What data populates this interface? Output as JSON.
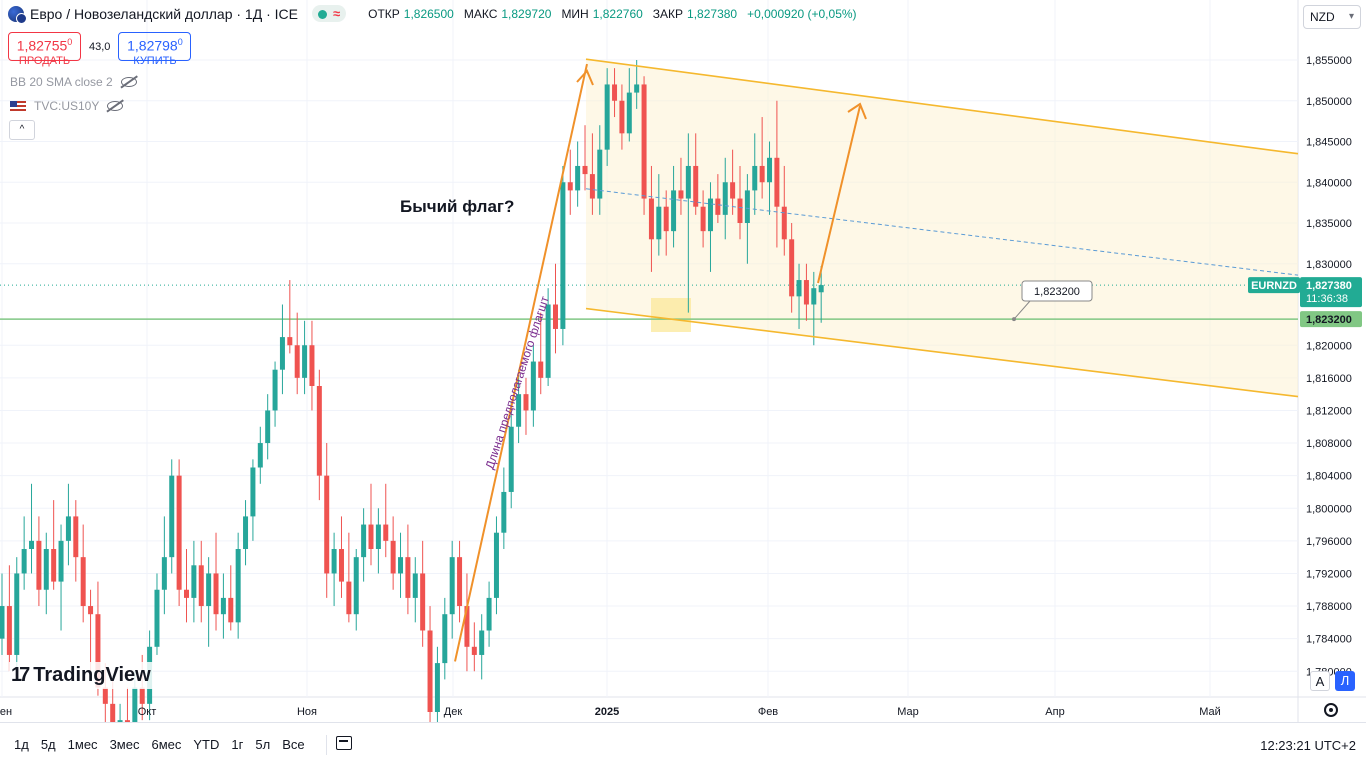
{
  "legend": {
    "title": "Евро / Новозеландский доллар · 1Д · ICE",
    "wave_symbol": "≈",
    "ohlc": [
      {
        "label": "ОТКР",
        "value": "1,826500"
      },
      {
        "label": "МАКС",
        "value": "1,829720"
      },
      {
        "label": "МИН",
        "value": "1,822760"
      },
      {
        "label": "ЗАКР",
        "value": "1,827380"
      },
      {
        "label": "",
        "value": "+0,000920 (+0,05%)"
      }
    ]
  },
  "trade": {
    "sell_price": "1,82755",
    "sell_price_sup": "0",
    "sell_label": "ПРОДАТЬ",
    "spread": "43,0",
    "buy_price": "1,82798",
    "buy_price_sup": "0",
    "buy_label": "КУПИТЬ"
  },
  "indicators": [
    {
      "label": "BB 20 SMA close 2"
    },
    {
      "label": "TVC:US10Y"
    }
  ],
  "collapse_icon": "^",
  "currency_selector": "NZD",
  "logo": {
    "mark": "17",
    "text": "TradingView"
  },
  "axis_buttons": {
    "auto": "A",
    "log": "Л"
  },
  "bottom_toolbar": {
    "ranges": [
      "1д",
      "5д",
      "1мес",
      "3мес",
      "6мес",
      "YTD",
      "1г",
      "5л",
      "Все"
    ],
    "time": "12:23:21 UTC+2"
  },
  "chart_data": {
    "type": "candlestick",
    "symbol": "EURNZD",
    "x_tick_labels": [
      "Сен",
      "Окт",
      "Ноя",
      "Дек",
      "2025",
      "Фев",
      "Мар",
      "Апр",
      "Май"
    ],
    "y_tick_labels": [
      "1,855000",
      "1,850000",
      "1,845000",
      "1,840000",
      "1,835000",
      "1,830000",
      "1,820000",
      "1,816000",
      "1,812000",
      "1,808000",
      "1,804000",
      "1,800000",
      "1,796000",
      "1,792000",
      "1,788000",
      "1,784000",
      "1,780000"
    ],
    "price_marks": [
      {
        "label": "EURNZD",
        "value": "1,827380",
        "countdown": "11:36:38",
        "color": "#22ab94"
      },
      {
        "label": "",
        "value": "1,823200",
        "color": "#81c784"
      }
    ],
    "horizontal_level": 1.8232,
    "annotations": [
      {
        "text": "Бычий флаг?"
      },
      {
        "text": "1,823200"
      },
      {
        "text": "Длина предполагаемого флагшт"
      }
    ],
    "candles": [
      {
        "o": 1.784,
        "h": 1.792,
        "l": 1.782,
        "c": 1.788
      },
      {
        "o": 1.788,
        "h": 1.793,
        "l": 1.78,
        "c": 1.782
      },
      {
        "o": 1.782,
        "h": 1.794,
        "l": 1.78,
        "c": 1.792
      },
      {
        "o": 1.792,
        "h": 1.799,
        "l": 1.79,
        "c": 1.795
      },
      {
        "o": 1.795,
        "h": 1.803,
        "l": 1.792,
        "c": 1.796
      },
      {
        "o": 1.796,
        "h": 1.799,
        "l": 1.788,
        "c": 1.79
      },
      {
        "o": 1.79,
        "h": 1.797,
        "l": 1.787,
        "c": 1.795
      },
      {
        "o": 1.795,
        "h": 1.801,
        "l": 1.79,
        "c": 1.791
      },
      {
        "o": 1.791,
        "h": 1.798,
        "l": 1.785,
        "c": 1.796
      },
      {
        "o": 1.796,
        "h": 1.803,
        "l": 1.793,
        "c": 1.799
      },
      {
        "o": 1.799,
        "h": 1.801,
        "l": 1.791,
        "c": 1.794
      },
      {
        "o": 1.794,
        "h": 1.798,
        "l": 1.786,
        "c": 1.788
      },
      {
        "o": 1.788,
        "h": 1.79,
        "l": 1.78,
        "c": 1.787
      },
      {
        "o": 1.787,
        "h": 1.791,
        "l": 1.777,
        "c": 1.778
      },
      {
        "o": 1.778,
        "h": 1.781,
        "l": 1.773,
        "c": 1.776
      },
      {
        "o": 1.776,
        "h": 1.779,
        "l": 1.77,
        "c": 1.772
      },
      {
        "o": 1.772,
        "h": 1.776,
        "l": 1.769,
        "c": 1.774
      },
      {
        "o": 1.774,
        "h": 1.778,
        "l": 1.77,
        "c": 1.772
      },
      {
        "o": 1.772,
        "h": 1.78,
        "l": 1.77,
        "c": 1.778
      },
      {
        "o": 1.778,
        "h": 1.782,
        "l": 1.774,
        "c": 1.776
      },
      {
        "o": 1.776,
        "h": 1.785,
        "l": 1.774,
        "c": 1.783
      },
      {
        "o": 1.783,
        "h": 1.792,
        "l": 1.782,
        "c": 1.79
      },
      {
        "o": 1.79,
        "h": 1.799,
        "l": 1.787,
        "c": 1.794
      },
      {
        "o": 1.794,
        "h": 1.806,
        "l": 1.792,
        "c": 1.804
      },
      {
        "o": 1.804,
        "h": 1.806,
        "l": 1.788,
        "c": 1.79
      },
      {
        "o": 1.79,
        "h": 1.795,
        "l": 1.786,
        "c": 1.789
      },
      {
        "o": 1.789,
        "h": 1.796,
        "l": 1.786,
        "c": 1.793
      },
      {
        "o": 1.793,
        "h": 1.796,
        "l": 1.786,
        "c": 1.788
      },
      {
        "o": 1.788,
        "h": 1.794,
        "l": 1.783,
        "c": 1.792
      },
      {
        "o": 1.792,
        "h": 1.797,
        "l": 1.785,
        "c": 1.787
      },
      {
        "o": 1.787,
        "h": 1.792,
        "l": 1.784,
        "c": 1.789
      },
      {
        "o": 1.789,
        "h": 1.793,
        "l": 1.785,
        "c": 1.786
      },
      {
        "o": 1.786,
        "h": 1.797,
        "l": 1.784,
        "c": 1.795
      },
      {
        "o": 1.795,
        "h": 1.801,
        "l": 1.793,
        "c": 1.799
      },
      {
        "o": 1.799,
        "h": 1.806,
        "l": 1.796,
        "c": 1.805
      },
      {
        "o": 1.805,
        "h": 1.81,
        "l": 1.803,
        "c": 1.808
      },
      {
        "o": 1.808,
        "h": 1.814,
        "l": 1.806,
        "c": 1.812
      },
      {
        "o": 1.812,
        "h": 1.818,
        "l": 1.81,
        "c": 1.817
      },
      {
        "o": 1.817,
        "h": 1.825,
        "l": 1.814,
        "c": 1.821
      },
      {
        "o": 1.821,
        "h": 1.828,
        "l": 1.819,
        "c": 1.82
      },
      {
        "o": 1.82,
        "h": 1.824,
        "l": 1.814,
        "c": 1.816
      },
      {
        "o": 1.816,
        "h": 1.823,
        "l": 1.814,
        "c": 1.82
      },
      {
        "o": 1.82,
        "h": 1.823,
        "l": 1.812,
        "c": 1.815
      },
      {
        "o": 1.815,
        "h": 1.817,
        "l": 1.801,
        "c": 1.804
      },
      {
        "o": 1.804,
        "h": 1.808,
        "l": 1.789,
        "c": 1.792
      },
      {
        "o": 1.792,
        "h": 1.797,
        "l": 1.788,
        "c": 1.795
      },
      {
        "o": 1.795,
        "h": 1.799,
        "l": 1.789,
        "c": 1.791
      },
      {
        "o": 1.791,
        "h": 1.797,
        "l": 1.786,
        "c": 1.787
      },
      {
        "o": 1.787,
        "h": 1.795,
        "l": 1.785,
        "c": 1.794
      },
      {
        "o": 1.794,
        "h": 1.8,
        "l": 1.791,
        "c": 1.798
      },
      {
        "o": 1.798,
        "h": 1.803,
        "l": 1.793,
        "c": 1.795
      },
      {
        "o": 1.795,
        "h": 1.8,
        "l": 1.792,
        "c": 1.798
      },
      {
        "o": 1.798,
        "h": 1.803,
        "l": 1.794,
        "c": 1.796
      },
      {
        "o": 1.796,
        "h": 1.799,
        "l": 1.79,
        "c": 1.792
      },
      {
        "o": 1.792,
        "h": 1.797,
        "l": 1.789,
        "c": 1.794
      },
      {
        "o": 1.794,
        "h": 1.798,
        "l": 1.787,
        "c": 1.789
      },
      {
        "o": 1.789,
        "h": 1.794,
        "l": 1.786,
        "c": 1.792
      },
      {
        "o": 1.792,
        "h": 1.796,
        "l": 1.783,
        "c": 1.785
      },
      {
        "o": 1.785,
        "h": 1.788,
        "l": 1.773,
        "c": 1.775
      },
      {
        "o": 1.775,
        "h": 1.783,
        "l": 1.772,
        "c": 1.781
      },
      {
        "o": 1.781,
        "h": 1.789,
        "l": 1.779,
        "c": 1.787
      },
      {
        "o": 1.787,
        "h": 1.796,
        "l": 1.784,
        "c": 1.794
      },
      {
        "o": 1.794,
        "h": 1.796,
        "l": 1.786,
        "c": 1.788
      },
      {
        "o": 1.788,
        "h": 1.792,
        "l": 1.78,
        "c": 1.783
      },
      {
        "o": 1.783,
        "h": 1.786,
        "l": 1.78,
        "c": 1.782
      },
      {
        "o": 1.782,
        "h": 1.787,
        "l": 1.779,
        "c": 1.785
      },
      {
        "o": 1.785,
        "h": 1.791,
        "l": 1.783,
        "c": 1.789
      },
      {
        "o": 1.789,
        "h": 1.799,
        "l": 1.787,
        "c": 1.797
      },
      {
        "o": 1.797,
        "h": 1.805,
        "l": 1.795,
        "c": 1.802
      },
      {
        "o": 1.802,
        "h": 1.813,
        "l": 1.8,
        "c": 1.81
      },
      {
        "o": 1.81,
        "h": 1.817,
        "l": 1.808,
        "c": 1.814
      },
      {
        "o": 1.814,
        "h": 1.816,
        "l": 1.809,
        "c": 1.812
      },
      {
        "o": 1.812,
        "h": 1.82,
        "l": 1.81,
        "c": 1.818
      },
      {
        "o": 1.818,
        "h": 1.824,
        "l": 1.814,
        "c": 1.816
      },
      {
        "o": 1.816,
        "h": 1.827,
        "l": 1.815,
        "c": 1.825
      },
      {
        "o": 1.825,
        "h": 1.83,
        "l": 1.819,
        "c": 1.822
      },
      {
        "o": 1.822,
        "h": 1.842,
        "l": 1.82,
        "c": 1.84
      },
      {
        "o": 1.84,
        "h": 1.844,
        "l": 1.836,
        "c": 1.839
      },
      {
        "o": 1.839,
        "h": 1.845,
        "l": 1.837,
        "c": 1.842
      },
      {
        "o": 1.842,
        "h": 1.847,
        "l": 1.839,
        "c": 1.841
      },
      {
        "o": 1.841,
        "h": 1.846,
        "l": 1.836,
        "c": 1.838
      },
      {
        "o": 1.838,
        "h": 1.847,
        "l": 1.836,
        "c": 1.844
      },
      {
        "o": 1.844,
        "h": 1.854,
        "l": 1.842,
        "c": 1.852
      },
      {
        "o": 1.852,
        "h": 1.854,
        "l": 1.848,
        "c": 1.85
      },
      {
        "o": 1.85,
        "h": 1.852,
        "l": 1.844,
        "c": 1.846
      },
      {
        "o": 1.846,
        "h": 1.854,
        "l": 1.845,
        "c": 1.851
      },
      {
        "o": 1.851,
        "h": 1.855,
        "l": 1.849,
        "c": 1.852
      },
      {
        "o": 1.852,
        "h": 1.853,
        "l": 1.836,
        "c": 1.838
      },
      {
        "o": 1.838,
        "h": 1.842,
        "l": 1.829,
        "c": 1.833
      },
      {
        "o": 1.833,
        "h": 1.841,
        "l": 1.831,
        "c": 1.837
      },
      {
        "o": 1.837,
        "h": 1.839,
        "l": 1.831,
        "c": 1.834
      },
      {
        "o": 1.834,
        "h": 1.842,
        "l": 1.832,
        "c": 1.839
      },
      {
        "o": 1.839,
        "h": 1.843,
        "l": 1.836,
        "c": 1.838
      },
      {
        "o": 1.838,
        "h": 1.846,
        "l": 1.824,
        "c": 1.842
      },
      {
        "o": 1.842,
        "h": 1.846,
        "l": 1.836,
        "c": 1.837
      },
      {
        "o": 1.837,
        "h": 1.839,
        "l": 1.832,
        "c": 1.834
      },
      {
        "o": 1.834,
        "h": 1.84,
        "l": 1.829,
        "c": 1.838
      },
      {
        "o": 1.838,
        "h": 1.841,
        "l": 1.835,
        "c": 1.836
      },
      {
        "o": 1.836,
        "h": 1.843,
        "l": 1.833,
        "c": 1.84
      },
      {
        "o": 1.84,
        "h": 1.844,
        "l": 1.836,
        "c": 1.838
      },
      {
        "o": 1.838,
        "h": 1.842,
        "l": 1.833,
        "c": 1.835
      },
      {
        "o": 1.835,
        "h": 1.841,
        "l": 1.83,
        "c": 1.839
      },
      {
        "o": 1.839,
        "h": 1.846,
        "l": 1.836,
        "c": 1.842
      },
      {
        "o": 1.842,
        "h": 1.848,
        "l": 1.838,
        "c": 1.84
      },
      {
        "o": 1.84,
        "h": 1.845,
        "l": 1.836,
        "c": 1.843
      },
      {
        "o": 1.843,
        "h": 1.85,
        "l": 1.832,
        "c": 1.837
      },
      {
        "o": 1.837,
        "h": 1.842,
        "l": 1.831,
        "c": 1.833
      },
      {
        "o": 1.833,
        "h": 1.835,
        "l": 1.824,
        "c": 1.826
      },
      {
        "o": 1.826,
        "h": 1.83,
        "l": 1.822,
        "c": 1.828
      },
      {
        "o": 1.828,
        "h": 1.83,
        "l": 1.823,
        "c": 1.825
      },
      {
        "o": 1.825,
        "h": 1.829,
        "l": 1.82,
        "c": 1.827
      },
      {
        "o": 1.8265,
        "h": 1.82972,
        "l": 1.82276,
        "c": 1.82738
      }
    ]
  }
}
